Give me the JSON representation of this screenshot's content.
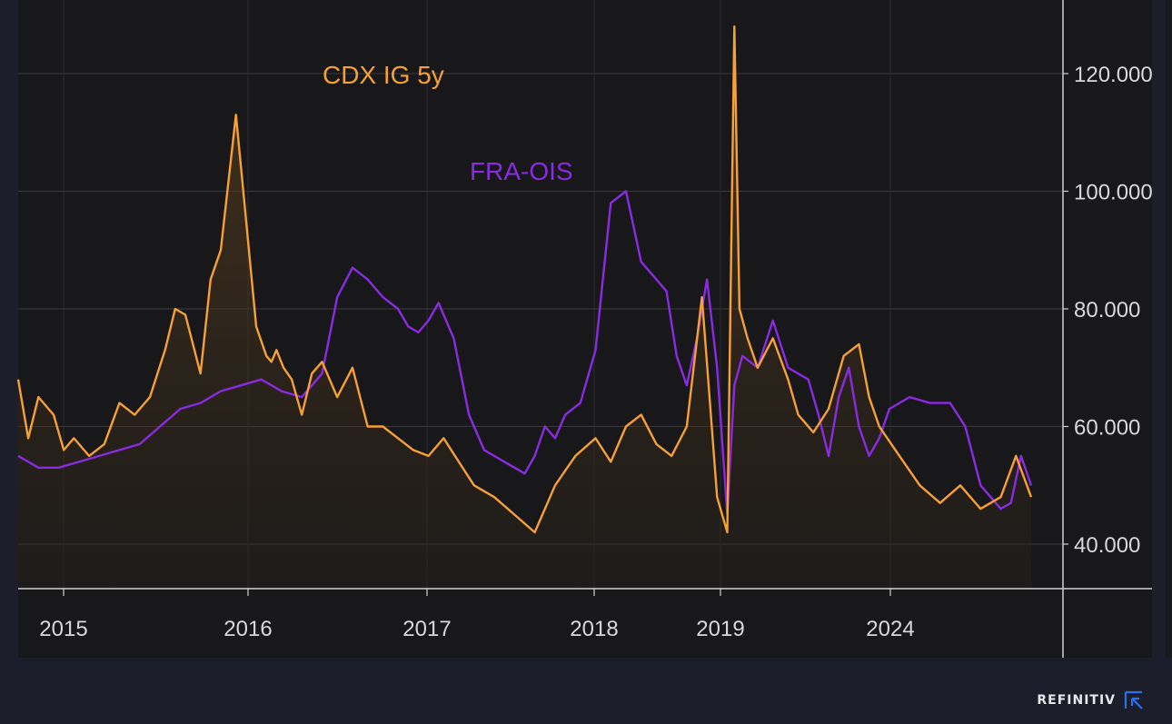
{
  "brand": {
    "name": "REFINITIV",
    "logo_icon": "refinitiv-logo-icon",
    "accent": "#2f6fe6"
  },
  "chart_data": {
    "type": "line",
    "title": "",
    "xlabel": "",
    "ylabel": "",
    "ylim": [
      32,
      130
    ],
    "yticks": [
      40,
      60,
      80,
      100,
      120
    ],
    "ytick_labels": [
      "40.000",
      "60.000",
      "80.000",
      "100.000",
      "120.000"
    ],
    "x_axis_labels": [
      "2015",
      "2016",
      "2017",
      "2018",
      "2019",
      "2024"
    ],
    "grid": true,
    "legend": "inline labels",
    "series": [
      {
        "name": "CDX IG 5y",
        "color": "#f7a035",
        "fill": "area",
        "x": [
          0,
          0.01,
          0.02,
          0.035,
          0.045,
          0.055,
          0.07,
          0.085,
          0.1,
          0.115,
          0.13,
          0.145,
          0.155,
          0.165,
          0.18,
          0.19,
          0.2,
          0.215,
          0.225,
          0.235,
          0.245,
          0.25,
          0.255,
          0.262,
          0.27,
          0.28,
          0.29,
          0.3,
          0.315,
          0.33,
          0.345,
          0.36,
          0.375,
          0.39,
          0.405,
          0.42,
          0.435,
          0.45,
          0.47,
          0.49,
          0.51,
          0.53,
          0.55,
          0.57,
          0.585,
          0.6,
          0.615,
          0.63,
          0.645,
          0.66,
          0.675,
          0.69,
          0.7,
          0.707,
          0.712,
          0.72,
          0.73,
          0.745,
          0.76,
          0.77,
          0.785,
          0.8,
          0.815,
          0.83,
          0.84,
          0.85,
          0.87,
          0.89,
          0.91,
          0.93,
          0.95,
          0.97,
          0.985,
          1.0
        ],
        "values": [
          68,
          58,
          65,
          62,
          56,
          58,
          55,
          57,
          64,
          62,
          65,
          73,
          80,
          79,
          69,
          85,
          90,
          113,
          95,
          77,
          72,
          71,
          73,
          70,
          68,
          62,
          69,
          71,
          65,
          70,
          60,
          60,
          58,
          56,
          55,
          58,
          54,
          50,
          48,
          45,
          42,
          50,
          55,
          58,
          54,
          60,
          62,
          57,
          55,
          60,
          82,
          48,
          42,
          128,
          80,
          75,
          70,
          75,
          68,
          62,
          59,
          63,
          72,
          74,
          65,
          60,
          55,
          50,
          47,
          50,
          46,
          48,
          55,
          48
        ]
      },
      {
        "name": "FRA-OIS",
        "color": "#8a2be2",
        "fill": "none",
        "x": [
          0,
          0.02,
          0.04,
          0.06,
          0.08,
          0.1,
          0.12,
          0.14,
          0.16,
          0.18,
          0.2,
          0.22,
          0.24,
          0.26,
          0.28,
          0.3,
          0.315,
          0.33,
          0.345,
          0.36,
          0.375,
          0.385,
          0.395,
          0.405,
          0.415,
          0.43,
          0.445,
          0.46,
          0.47,
          0.48,
          0.49,
          0.5,
          0.51,
          0.52,
          0.53,
          0.54,
          0.555,
          0.57,
          0.585,
          0.6,
          0.615,
          0.63,
          0.64,
          0.65,
          0.66,
          0.67,
          0.68,
          0.69,
          0.7,
          0.707,
          0.715,
          0.73,
          0.745,
          0.76,
          0.78,
          0.79,
          0.8,
          0.81,
          0.82,
          0.83,
          0.84,
          0.85,
          0.86,
          0.88,
          0.9,
          0.92,
          0.935,
          0.95,
          0.96,
          0.97,
          0.98,
          0.99,
          1.0
        ],
        "values": [
          55,
          53,
          53,
          54,
          55,
          56,
          57,
          60,
          63,
          64,
          66,
          67,
          68,
          66,
          65,
          69,
          82,
          87,
          85,
          82,
          80,
          77,
          76,
          78,
          81,
          75,
          62,
          56,
          55,
          54,
          53,
          52,
          55,
          60,
          58,
          62,
          64,
          73,
          98,
          100,
          88,
          85,
          83,
          72,
          67,
          75,
          85,
          70,
          45,
          67,
          72,
          70,
          78,
          70,
          68,
          62,
          55,
          65,
          70,
          60,
          55,
          58,
          63,
          65,
          64,
          64,
          60,
          50,
          48,
          46,
          47,
          55,
          50
        ]
      }
    ]
  }
}
